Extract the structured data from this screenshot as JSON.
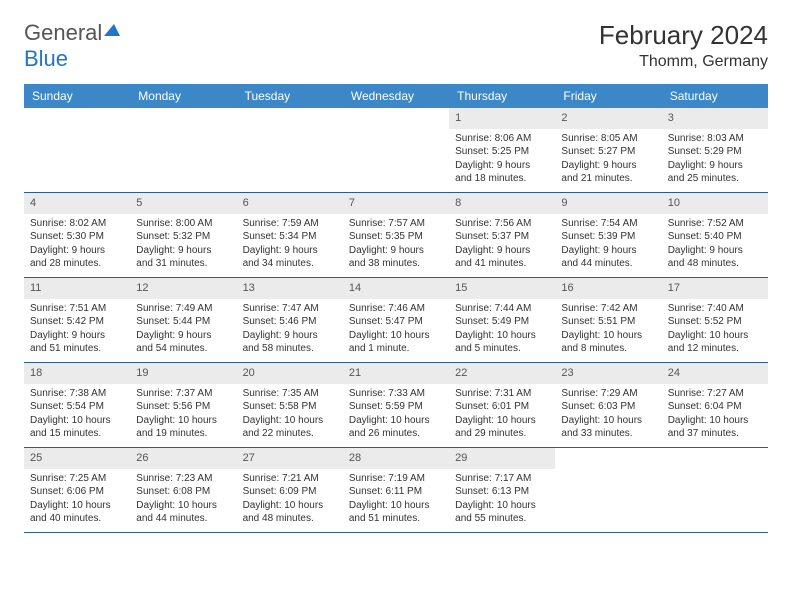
{
  "logo": {
    "text1": "General",
    "text2": "Blue"
  },
  "title": "February 2024",
  "location": "Thomm, Germany",
  "colors": {
    "header_bg": "#3b87c8",
    "header_text": "#ffffff",
    "daynum_bg": "#ebebeb",
    "border": "#2a5d8f",
    "logo_blue": "#2176c7",
    "text": "#333333"
  },
  "day_names": [
    "Sunday",
    "Monday",
    "Tuesday",
    "Wednesday",
    "Thursday",
    "Friday",
    "Saturday"
  ],
  "weeks": [
    [
      null,
      null,
      null,
      null,
      {
        "n": "1",
        "sr": "Sunrise: 8:06 AM",
        "ss": "Sunset: 5:25 PM",
        "d1": "Daylight: 9 hours",
        "d2": "and 18 minutes."
      },
      {
        "n": "2",
        "sr": "Sunrise: 8:05 AM",
        "ss": "Sunset: 5:27 PM",
        "d1": "Daylight: 9 hours",
        "d2": "and 21 minutes."
      },
      {
        "n": "3",
        "sr": "Sunrise: 8:03 AM",
        "ss": "Sunset: 5:29 PM",
        "d1": "Daylight: 9 hours",
        "d2": "and 25 minutes."
      }
    ],
    [
      {
        "n": "4",
        "sr": "Sunrise: 8:02 AM",
        "ss": "Sunset: 5:30 PM",
        "d1": "Daylight: 9 hours",
        "d2": "and 28 minutes."
      },
      {
        "n": "5",
        "sr": "Sunrise: 8:00 AM",
        "ss": "Sunset: 5:32 PM",
        "d1": "Daylight: 9 hours",
        "d2": "and 31 minutes."
      },
      {
        "n": "6",
        "sr": "Sunrise: 7:59 AM",
        "ss": "Sunset: 5:34 PM",
        "d1": "Daylight: 9 hours",
        "d2": "and 34 minutes."
      },
      {
        "n": "7",
        "sr": "Sunrise: 7:57 AM",
        "ss": "Sunset: 5:35 PM",
        "d1": "Daylight: 9 hours",
        "d2": "and 38 minutes."
      },
      {
        "n": "8",
        "sr": "Sunrise: 7:56 AM",
        "ss": "Sunset: 5:37 PM",
        "d1": "Daylight: 9 hours",
        "d2": "and 41 minutes."
      },
      {
        "n": "9",
        "sr": "Sunrise: 7:54 AM",
        "ss": "Sunset: 5:39 PM",
        "d1": "Daylight: 9 hours",
        "d2": "and 44 minutes."
      },
      {
        "n": "10",
        "sr": "Sunrise: 7:52 AM",
        "ss": "Sunset: 5:40 PM",
        "d1": "Daylight: 9 hours",
        "d2": "and 48 minutes."
      }
    ],
    [
      {
        "n": "11",
        "sr": "Sunrise: 7:51 AM",
        "ss": "Sunset: 5:42 PM",
        "d1": "Daylight: 9 hours",
        "d2": "and 51 minutes."
      },
      {
        "n": "12",
        "sr": "Sunrise: 7:49 AM",
        "ss": "Sunset: 5:44 PM",
        "d1": "Daylight: 9 hours",
        "d2": "and 54 minutes."
      },
      {
        "n": "13",
        "sr": "Sunrise: 7:47 AM",
        "ss": "Sunset: 5:46 PM",
        "d1": "Daylight: 9 hours",
        "d2": "and 58 minutes."
      },
      {
        "n": "14",
        "sr": "Sunrise: 7:46 AM",
        "ss": "Sunset: 5:47 PM",
        "d1": "Daylight: 10 hours",
        "d2": "and 1 minute."
      },
      {
        "n": "15",
        "sr": "Sunrise: 7:44 AM",
        "ss": "Sunset: 5:49 PM",
        "d1": "Daylight: 10 hours",
        "d2": "and 5 minutes."
      },
      {
        "n": "16",
        "sr": "Sunrise: 7:42 AM",
        "ss": "Sunset: 5:51 PM",
        "d1": "Daylight: 10 hours",
        "d2": "and 8 minutes."
      },
      {
        "n": "17",
        "sr": "Sunrise: 7:40 AM",
        "ss": "Sunset: 5:52 PM",
        "d1": "Daylight: 10 hours",
        "d2": "and 12 minutes."
      }
    ],
    [
      {
        "n": "18",
        "sr": "Sunrise: 7:38 AM",
        "ss": "Sunset: 5:54 PM",
        "d1": "Daylight: 10 hours",
        "d2": "and 15 minutes."
      },
      {
        "n": "19",
        "sr": "Sunrise: 7:37 AM",
        "ss": "Sunset: 5:56 PM",
        "d1": "Daylight: 10 hours",
        "d2": "and 19 minutes."
      },
      {
        "n": "20",
        "sr": "Sunrise: 7:35 AM",
        "ss": "Sunset: 5:58 PM",
        "d1": "Daylight: 10 hours",
        "d2": "and 22 minutes."
      },
      {
        "n": "21",
        "sr": "Sunrise: 7:33 AM",
        "ss": "Sunset: 5:59 PM",
        "d1": "Daylight: 10 hours",
        "d2": "and 26 minutes."
      },
      {
        "n": "22",
        "sr": "Sunrise: 7:31 AM",
        "ss": "Sunset: 6:01 PM",
        "d1": "Daylight: 10 hours",
        "d2": "and 29 minutes."
      },
      {
        "n": "23",
        "sr": "Sunrise: 7:29 AM",
        "ss": "Sunset: 6:03 PM",
        "d1": "Daylight: 10 hours",
        "d2": "and 33 minutes."
      },
      {
        "n": "24",
        "sr": "Sunrise: 7:27 AM",
        "ss": "Sunset: 6:04 PM",
        "d1": "Daylight: 10 hours",
        "d2": "and 37 minutes."
      }
    ],
    [
      {
        "n": "25",
        "sr": "Sunrise: 7:25 AM",
        "ss": "Sunset: 6:06 PM",
        "d1": "Daylight: 10 hours",
        "d2": "and 40 minutes."
      },
      {
        "n": "26",
        "sr": "Sunrise: 7:23 AM",
        "ss": "Sunset: 6:08 PM",
        "d1": "Daylight: 10 hours",
        "d2": "and 44 minutes."
      },
      {
        "n": "27",
        "sr": "Sunrise: 7:21 AM",
        "ss": "Sunset: 6:09 PM",
        "d1": "Daylight: 10 hours",
        "d2": "and 48 minutes."
      },
      {
        "n": "28",
        "sr": "Sunrise: 7:19 AM",
        "ss": "Sunset: 6:11 PM",
        "d1": "Daylight: 10 hours",
        "d2": "and 51 minutes."
      },
      {
        "n": "29",
        "sr": "Sunrise: 7:17 AM",
        "ss": "Sunset: 6:13 PM",
        "d1": "Daylight: 10 hours",
        "d2": "and 55 minutes."
      },
      null,
      null
    ]
  ]
}
